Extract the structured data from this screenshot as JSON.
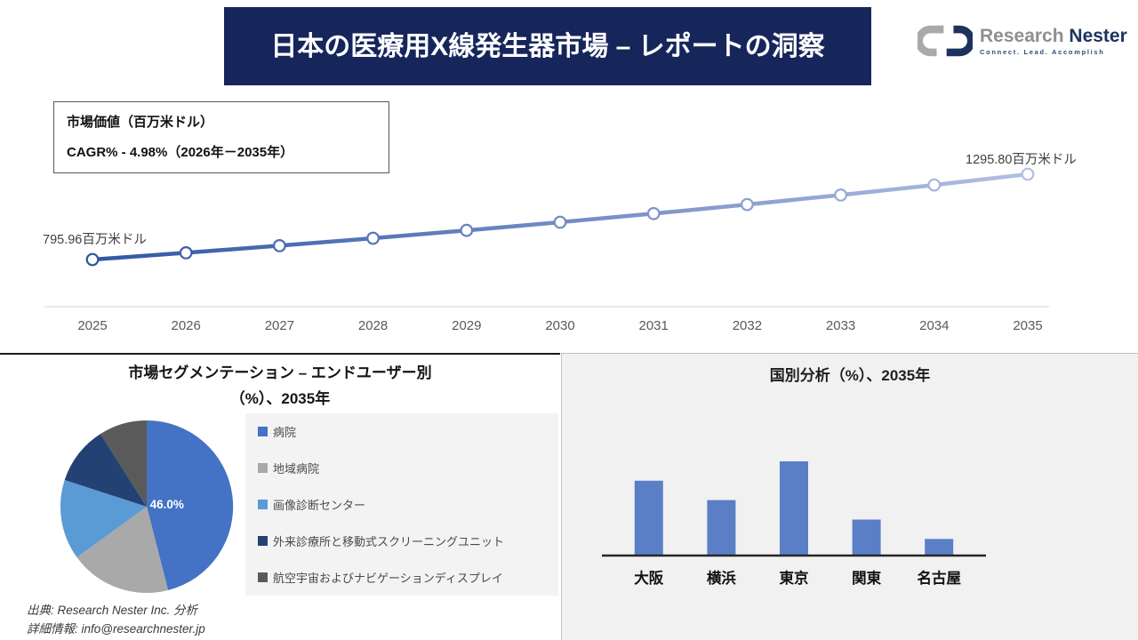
{
  "header": {
    "title": "日本の医療用X線発生器市場 – レポートの洞察"
  },
  "logo": {
    "name_primary": "Research",
    "name_secondary": "Nester",
    "tagline": "Connect. Lead. Accomplish"
  },
  "info_box": {
    "line1": "市場価値（百万米ドル）",
    "line2": "CAGR% - 4.98%（2026年－2035年）"
  },
  "colors": {
    "header_bg": "#16265B",
    "header_text": "#FFFFFF",
    "axis_gray": "#D9D9D9",
    "year_label": "#595959"
  },
  "chart_data": [
    {
      "type": "line",
      "title": "市場価値（百万米ドル）",
      "x": [
        2025,
        2026,
        2027,
        2028,
        2029,
        2030,
        2031,
        2032,
        2033,
        2034,
        2035
      ],
      "values": [
        795.96,
        835.6,
        877.2,
        920.9,
        966.8,
        1014.9,
        1065.4,
        1118.5,
        1174.2,
        1232.7,
        1295.8
      ],
      "first_point_label": "795.96百万米ドル",
      "last_point_label": "1295.80百万米ドル",
      "cagr_percent": 4.98,
      "gradient": [
        "#2F57A4",
        "#B3BFE4"
      ],
      "marker": "white-circle",
      "grid": false,
      "legend_position": "none"
    },
    {
      "type": "pie",
      "title_line1": "市場セグメンテーション – エンドユーザー別",
      "title_line2": "（%）、2035年",
      "labels": [
        "病院",
        "地域病院",
        "画像診断センター",
        "外来診療所と移動式スクリーニングユニット",
        "航空宇宙およびナビゲーションディスプレイ"
      ],
      "values": [
        46.0,
        19,
        15,
        11,
        9
      ],
      "colors": [
        "#4472C4",
        "#A9A9A9",
        "#5B9BD5",
        "#234273",
        "#5A5A5A"
      ],
      "shown_label": "46.0%",
      "legend_position": "right"
    },
    {
      "type": "bar",
      "title": "国別分析（%）、2035年",
      "categories": [
        "大阪",
        "横浜",
        "東京",
        "関東",
        "名古屋"
      ],
      "values": [
        27,
        20,
        34,
        13,
        6
      ],
      "color": "#5B7FC6",
      "grid": false,
      "ylabel": "",
      "xlabel": ""
    }
  ],
  "footer": {
    "source": "出典: Research Nester Inc. 分析",
    "contact": "詳細情報: info@researchnester.jp"
  }
}
